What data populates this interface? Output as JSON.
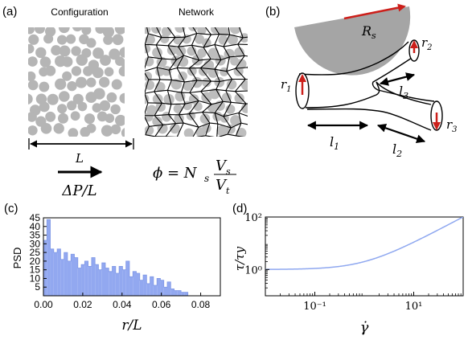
{
  "panels": {
    "a": {
      "label": "(a)",
      "config_title": "Configuration",
      "network_title": "Network",
      "length_label": "L",
      "pressure_label": "ΔP/L",
      "phi_lhs": "ϕ = N",
      "phi_sub": "s",
      "phi_num": "V",
      "phi_num_sub": "s",
      "phi_den": "V",
      "phi_den_sub": "t"
    },
    "b": {
      "label": "(b)",
      "rs": "R",
      "rs_sub": "s",
      "r1": "r",
      "r1_sub": "1",
      "r2": "r",
      "r2_sub": "2",
      "r3": "r",
      "r3_sub": "3",
      "l1": "l",
      "l1_sub": "1",
      "l2": "l",
      "l2_sub": "2",
      "l3": "l",
      "l3_sub": "3"
    },
    "c": {
      "label": "(c)"
    },
    "d": {
      "label": "(d)"
    }
  },
  "chart_data": [
    {
      "type": "bar",
      "panel": "c",
      "xlabel": "r/L",
      "ylabel": "PSD",
      "xlim": [
        0,
        0.09
      ],
      "ylim": [
        0,
        45
      ],
      "xticks": [
        "0.00",
        "0.02",
        "0.04",
        "0.06",
        "0.08"
      ],
      "yticks": [
        "5",
        "10",
        "15",
        "20",
        "25",
        "30",
        "35",
        "40",
        "45"
      ],
      "color": "#92a8f0",
      "bin_width": 0.00175,
      "x": [
        0.0,
        0.00175,
        0.0035,
        0.00525,
        0.007,
        0.00875,
        0.0105,
        0.01225,
        0.014,
        0.01575,
        0.0175,
        0.01925,
        0.021,
        0.02275,
        0.0245,
        0.02625,
        0.028,
        0.02975,
        0.0315,
        0.03325,
        0.035,
        0.03675,
        0.0385,
        0.04025,
        0.042,
        0.04375,
        0.0455,
        0.04725,
        0.049,
        0.05075,
        0.0525,
        0.05425,
        0.056,
        0.05775,
        0.0595,
        0.06125,
        0.063,
        0.06475,
        0.0665,
        0.06825,
        0.07,
        0.07175
      ],
      "values": [
        32,
        44,
        27,
        25,
        27,
        21,
        25,
        20,
        24,
        22,
        16,
        18,
        20,
        17,
        22,
        18,
        15,
        19,
        16,
        14,
        17,
        13,
        17,
        15,
        20,
        11,
        14,
        13,
        9,
        12,
        7,
        11,
        6,
        10,
        9,
        5,
        8,
        4,
        3,
        3,
        2,
        2
      ]
    },
    {
      "type": "line",
      "panel": "d",
      "xlabel": "γ̇",
      "ylabel": "τ/τy",
      "xscale": "log",
      "yscale": "log",
      "xlim": [
        0.01,
        100
      ],
      "ylim": [
        0.1,
        100
      ],
      "xticks": [
        "10⁻¹",
        "10¹"
      ],
      "yticks": [
        "10⁰",
        "10²"
      ],
      "color": "#8fa8f0",
      "tau_y": 1,
      "k": 1,
      "n": 1
    }
  ]
}
